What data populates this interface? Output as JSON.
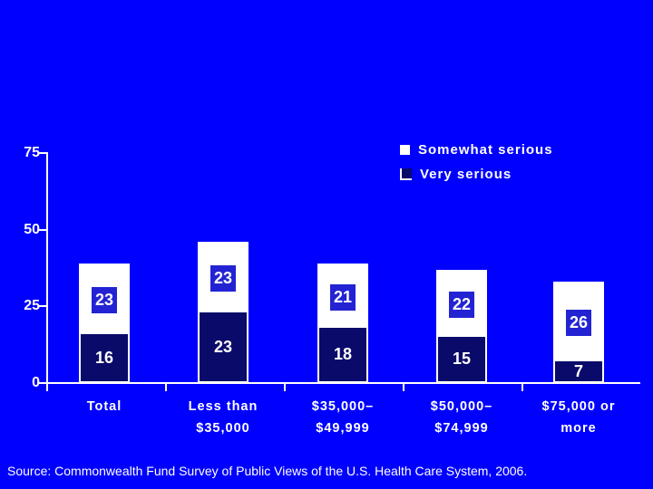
{
  "colors": {
    "background": "#0000FE",
    "navy": "#0A0A6B",
    "white": "#FFFFFF",
    "value_box_blue": "#2323D4",
    "axis": "#FFFFFF"
  },
  "legend": {
    "items": [
      {
        "label": "Somewhat serious",
        "color": "#FFFFFF"
      },
      {
        "label": "Very serious",
        "color": "#0A0A6B"
      }
    ]
  },
  "chart_data": {
    "type": "bar",
    "stacked": true,
    "title": "",
    "xlabel": "",
    "ylabel": "",
    "categories": [
      [
        "Total"
      ],
      [
        "Less than",
        "$35,000"
      ],
      [
        "$35,000–",
        "$49,999"
      ],
      [
        "$50,000–",
        "$74,999"
      ],
      [
        "$75,000 or",
        "more"
      ]
    ],
    "series": [
      {
        "name": "Very serious",
        "color": "#0A0A6B",
        "values": [
          16,
          23,
          18,
          15,
          7
        ]
      },
      {
        "name": "Somewhat serious",
        "color": "#FFFFFF",
        "values": [
          23,
          23,
          21,
          22,
          26
        ]
      }
    ],
    "yticks": [
      0,
      25,
      50,
      75
    ],
    "ylim": [
      0,
      75
    ],
    "grid": false,
    "legend_position": "top-right"
  },
  "source": {
    "text": "Source: Commonwealth Fund Survey of Public Views of the U.S. Health Care System, 2006."
  }
}
